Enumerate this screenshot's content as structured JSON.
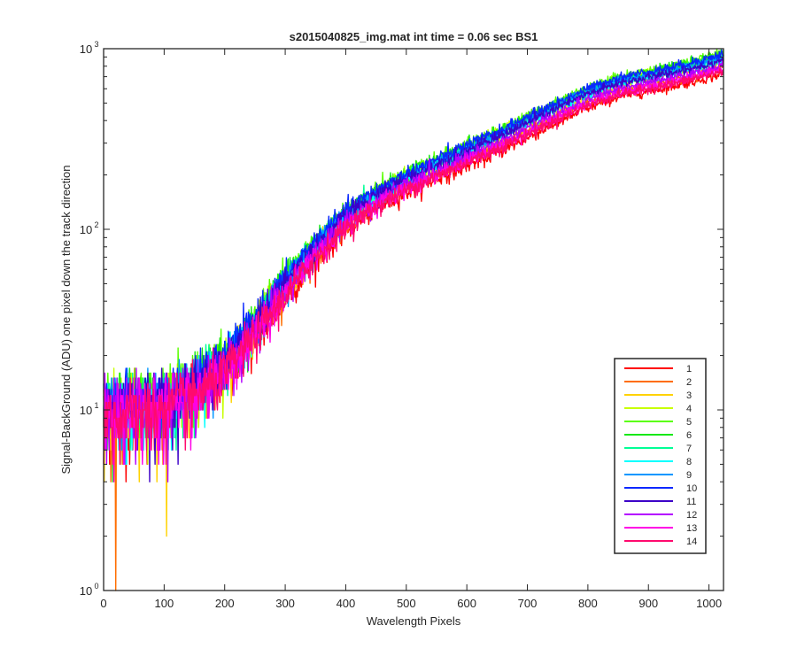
{
  "chart_data": {
    "type": "line",
    "title": "s2015040825_img.mat int time = 0.06 sec   BS1",
    "xlabel": "Wavelength Pixels",
    "ylabel": "Signal-BackGround (ADU) one pixel down the track direction",
    "xlim": [
      0,
      1024
    ],
    "ylim": [
      1,
      1000
    ],
    "yscale": "log",
    "grid": false,
    "legend_position": "bottom-right",
    "x_ticks": [
      "0",
      "100",
      "200",
      "300",
      "400",
      "500",
      "600",
      "700",
      "800",
      "900",
      "1000"
    ],
    "y_ticks": [
      {
        "base": "10",
        "exp": "0"
      },
      {
        "base": "10",
        "exp": "1"
      },
      {
        "base": "10",
        "exp": "2"
      },
      {
        "base": "10",
        "exp": "3"
      }
    ],
    "trend_x": [
      0,
      50,
      100,
      150,
      200,
      250,
      300,
      350,
      400,
      450,
      500,
      550,
      600,
      650,
      700,
      750,
      800,
      850,
      900,
      950,
      1000,
      1024
    ],
    "series": [
      {
        "name": "1",
        "color": "#ff0000",
        "values": [
          9,
          9.5,
          10,
          12,
          16,
          25,
          42,
          68,
          100,
          130,
          160,
          190,
          225,
          265,
          320,
          390,
          470,
          540,
          580,
          630,
          690,
          730
        ]
      },
      {
        "name": "2",
        "color": "#ff6d00",
        "values": [
          9.5,
          10,
          10.5,
          12.5,
          17,
          27,
          45,
          73,
          108,
          140,
          172,
          205,
          245,
          290,
          350,
          425,
          510,
          585,
          630,
          680,
          750,
          790
        ]
      },
      {
        "name": "3",
        "color": "#ffd200",
        "values": [
          10,
          10.5,
          11,
          13,
          18,
          29,
          49,
          78,
          116,
          150,
          186,
          222,
          265,
          315,
          380,
          460,
          550,
          630,
          680,
          735,
          810,
          855
        ]
      },
      {
        "name": "4",
        "color": "#c8ff00",
        "values": [
          10.5,
          11,
          11.5,
          14,
          19,
          31,
          53,
          84,
          124,
          160,
          198,
          238,
          285,
          338,
          408,
          495,
          590,
          675,
          730,
          790,
          870,
          920
        ]
      },
      {
        "name": "5",
        "color": "#5aff00",
        "values": [
          11,
          11.5,
          12,
          14.5,
          20,
          32,
          55,
          87,
          128,
          166,
          205,
          246,
          295,
          350,
          422,
          512,
          610,
          700,
          755,
          815,
          900,
          950
        ]
      },
      {
        "name": "6",
        "color": "#17e817",
        "values": [
          10.5,
          11,
          11.5,
          14,
          19.5,
          31,
          54,
          85,
          126,
          163,
          201,
          241,
          289,
          343,
          414,
          502,
          598,
          686,
          740,
          800,
          882,
          930
        ]
      },
      {
        "name": "7",
        "color": "#00ff96",
        "values": [
          10,
          10.5,
          11,
          13.5,
          18.5,
          30,
          51,
          81,
          120,
          155,
          192,
          230,
          276,
          327,
          395,
          478,
          570,
          655,
          705,
          762,
          840,
          887
        ]
      },
      {
        "name": "8",
        "color": "#00ffff",
        "values": [
          9.5,
          10,
          10.5,
          13,
          18,
          29,
          50,
          80,
          118,
          152,
          188,
          226,
          270,
          320,
          386,
          468,
          558,
          640,
          690,
          746,
          822,
          868
        ]
      },
      {
        "name": "9",
        "color": "#0096ff",
        "values": [
          10,
          10.5,
          11,
          13.5,
          19,
          30,
          52,
          83,
          122,
          158,
          195,
          234,
          280,
          332,
          400,
          485,
          578,
          663,
          715,
          772,
          851,
          898
        ]
      },
      {
        "name": "10",
        "color": "#0a28ff",
        "values": [
          10.5,
          11,
          11.5,
          14,
          19.5,
          31.5,
          54,
          86,
          127,
          165,
          203,
          244,
          292,
          346,
          418,
          506,
          603,
          692,
          746,
          806,
          888,
          937
        ]
      },
      {
        "name": "11",
        "color": "#3c00c8",
        "values": [
          10,
          10.5,
          11,
          13,
          18,
          29,
          50,
          80,
          118,
          153,
          189,
          227,
          271,
          321,
          388,
          470,
          560,
          642,
          692,
          748,
          824,
          870
        ]
      },
      {
        "name": "12",
        "color": "#b400ff",
        "values": [
          9.5,
          10,
          10.5,
          12.5,
          17,
          27.5,
          46,
          74,
          110,
          142,
          176,
          211,
          252,
          299,
          360,
          437,
          521,
          598,
          644,
          696,
          767,
          810
        ]
      },
      {
        "name": "13",
        "color": "#ff00e6",
        "values": [
          9,
          9.5,
          10,
          12,
          16.5,
          26.5,
          44,
          71,
          105,
          136,
          168,
          201,
          240,
          284,
          343,
          416,
          496,
          569,
          613,
          663,
          731,
          771
        ]
      },
      {
        "name": "14",
        "color": "#ff0a6e",
        "values": [
          9,
          9.5,
          10,
          12,
          16,
          26,
          43,
          70,
          103,
          133,
          165,
          197,
          235,
          278,
          336,
          407,
          486,
          557,
          600,
          649,
          716,
          755
        ]
      }
    ]
  }
}
